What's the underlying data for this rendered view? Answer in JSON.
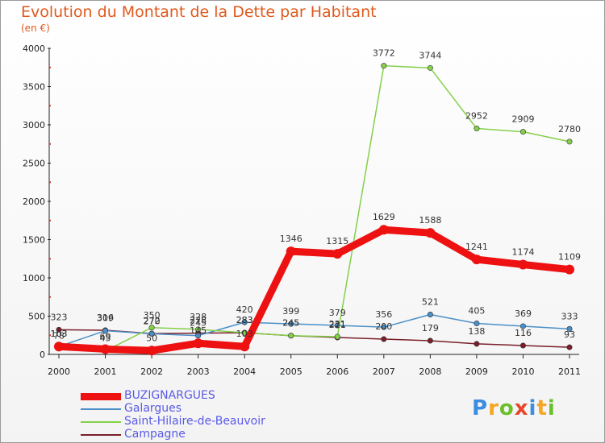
{
  "header": {
    "title": "Evolution du Montant de la Dette par Habitant",
    "unit": "(en €)"
  },
  "logo": {
    "letters": [
      "P",
      "r",
      "o",
      "x",
      "i",
      "t",
      "i"
    ],
    "colors": [
      "#3b8de0",
      "#f5a623",
      "#6cbf2a",
      "#e8452c",
      "#3b8de0",
      "#f5a623",
      "#6cbf2a"
    ]
  },
  "chart_data": {
    "type": "line",
    "title": "Evolution du Montant de la Dette par Habitant",
    "ylabel": "(en €)",
    "xlabel": "",
    "ylim": [
      0,
      4000
    ],
    "yticks": [
      "0",
      "500",
      "1000",
      "1500",
      "2000",
      "2500",
      "3000",
      "3500",
      "4000"
    ],
    "x": [
      "2000",
      "2001",
      "2002",
      "2003",
      "2004",
      "2005",
      "2006",
      "2007",
      "2008",
      "2009",
      "2010",
      "2011"
    ],
    "grid": false,
    "legend": "bottom-left",
    "series": [
      {
        "name": "BUZIGNARGUES",
        "color": "#ee1111",
        "values": [
          103,
          69,
          50,
          145,
          103,
          1346,
          1315,
          1629,
          1588,
          1241,
          1174,
          1109
        ]
      },
      {
        "name": "Galargues",
        "color": "#4a8fc7",
        "values": [
          103,
          309,
          270,
          245,
          420,
          399,
          379,
          356,
          521,
          405,
          369,
          333
        ]
      },
      {
        "name": "Saint-Hilaire-de-Beauvoir",
        "color": "#85d04a",
        "values": [
          78,
          45,
          350,
          328,
          283,
          245,
          231,
          3772,
          3744,
          2952,
          2909,
          2780
        ]
      },
      {
        "name": "Campagne",
        "color": "#7a1f2a",
        "values": [
          323,
          316,
          272,
          278,
          283,
          245,
          221,
          200,
          179,
          138,
          116,
          93
        ]
      }
    ]
  }
}
